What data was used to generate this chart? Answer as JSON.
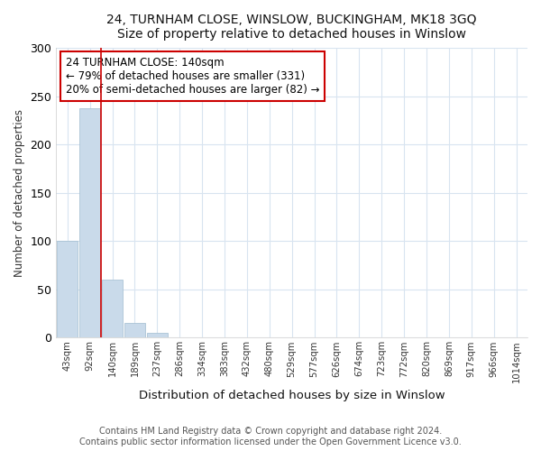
{
  "title1": "24, TURNHAM CLOSE, WINSLOW, BUCKINGHAM, MK18 3GQ",
  "title2": "Size of property relative to detached houses in Winslow",
  "xlabel": "Distribution of detached houses by size in Winslow",
  "ylabel": "Number of detached properties",
  "bar_labels": [
    "43sqm",
    "92sqm",
    "140sqm",
    "189sqm",
    "237sqm",
    "286sqm",
    "334sqm",
    "383sqm",
    "432sqm",
    "480sqm",
    "529sqm",
    "577sqm",
    "626sqm",
    "674sqm",
    "723sqm",
    "772sqm",
    "820sqm",
    "869sqm",
    "917sqm",
    "966sqm",
    "1014sqm"
  ],
  "bar_values": [
    100,
    238,
    60,
    15,
    5,
    0,
    0,
    0,
    0,
    0,
    0,
    0,
    0,
    0,
    0,
    0,
    0,
    0,
    0,
    0,
    0
  ],
  "highlight_index": 2,
  "bar_color": "#c9daea",
  "bar_edge_color": "#a0bcd0",
  "highlight_line_color": "#cc0000",
  "annotation_text": "24 TURNHAM CLOSE: 140sqm\n← 79% of detached houses are smaller (331)\n20% of semi-detached houses are larger (82) →",
  "annotation_box_color": "#ffffff",
  "annotation_box_edge": "#cc0000",
  "ylim": [
    0,
    300
  ],
  "yticks": [
    0,
    50,
    100,
    150,
    200,
    250,
    300
  ],
  "footer_text": "Contains HM Land Registry data © Crown copyright and database right 2024.\nContains public sector information licensed under the Open Government Licence v3.0.",
  "background_color": "#ffffff",
  "plot_background": "#ffffff",
  "grid_color": "#d8e4f0"
}
